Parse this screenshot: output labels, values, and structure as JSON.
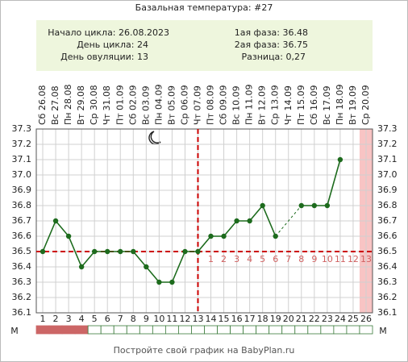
{
  "chart_data": {
    "type": "line",
    "title": "Базальная температура: #27",
    "info_left": [
      "Начало цикла: 26.08.2023",
      "День цикла: 24",
      "День овуляции: 13"
    ],
    "info_right": [
      "1ая фаза: 36.48",
      "2ая фаза: 36.75",
      "Разница: 0,27"
    ],
    "x": [
      1,
      2,
      3,
      4,
      5,
      6,
      7,
      8,
      9,
      10,
      11,
      12,
      13,
      14,
      15,
      16,
      17,
      18,
      19,
      20,
      21,
      22,
      23,
      24,
      25,
      26
    ],
    "categories": [
      "Сб 26.08",
      "Вс 27.08",
      "Пн 28.08",
      "Вт 29.08",
      "Ср 30.08",
      "Чт 31.08",
      "Пт 01.09",
      "Сб 02.09",
      "Вс 03.09",
      "Пн 04.09",
      "Вт 05.09",
      "Ср 06.09",
      "Чт 07.09",
      "Пт 08.09",
      "Сб 09.09",
      "Вс 10.09",
      "Пн 11.09",
      "Вт 12.09",
      "Ср 13.09",
      "Чт 14.09",
      "Пт 15.09",
      "Сб 16.09",
      "Вс 17.09",
      "Пн 18.09",
      "Вт 19.09",
      "Ср 20.09"
    ],
    "series": [
      {
        "color": "#1d6b1d",
        "values": [
          36.5,
          36.7,
          36.6,
          36.4,
          36.5,
          36.5,
          36.5,
          36.5,
          36.4,
          36.3,
          36.3,
          36.5,
          36.5,
          36.6,
          36.6,
          36.7,
          36.7,
          36.8,
          36.6,
          null,
          36.8,
          36.8,
          36.8,
          37.1,
          null,
          null
        ]
      }
    ],
    "ylim": [
      36.1,
      37.3
    ],
    "yticks": [
      36.1,
      36.2,
      36.3,
      36.4,
      36.5,
      36.6,
      36.7,
      36.8,
      36.9,
      {
        "value": 37,
        "label": "37.0"
      },
      37.1,
      37.2,
      37.3
    ],
    "coverline": 36.5,
    "ovulation_day": 13,
    "line_color": "#cc0000",
    "post_ovulation_days": [
      1,
      2,
      3,
      4,
      5,
      6,
      7,
      8,
      9,
      10,
      11,
      12,
      13
    ],
    "highlight_day": 26,
    "menstruation_label": "M",
    "menstruation": [
      true,
      true,
      true,
      true,
      false,
      false,
      false,
      false,
      false,
      false,
      false,
      false,
      false,
      false,
      false,
      false,
      false,
      false,
      false,
      false,
      false,
      false,
      false,
      false,
      false,
      false
    ],
    "footer": "Постройте свой график на BabyPlan.ru"
  }
}
